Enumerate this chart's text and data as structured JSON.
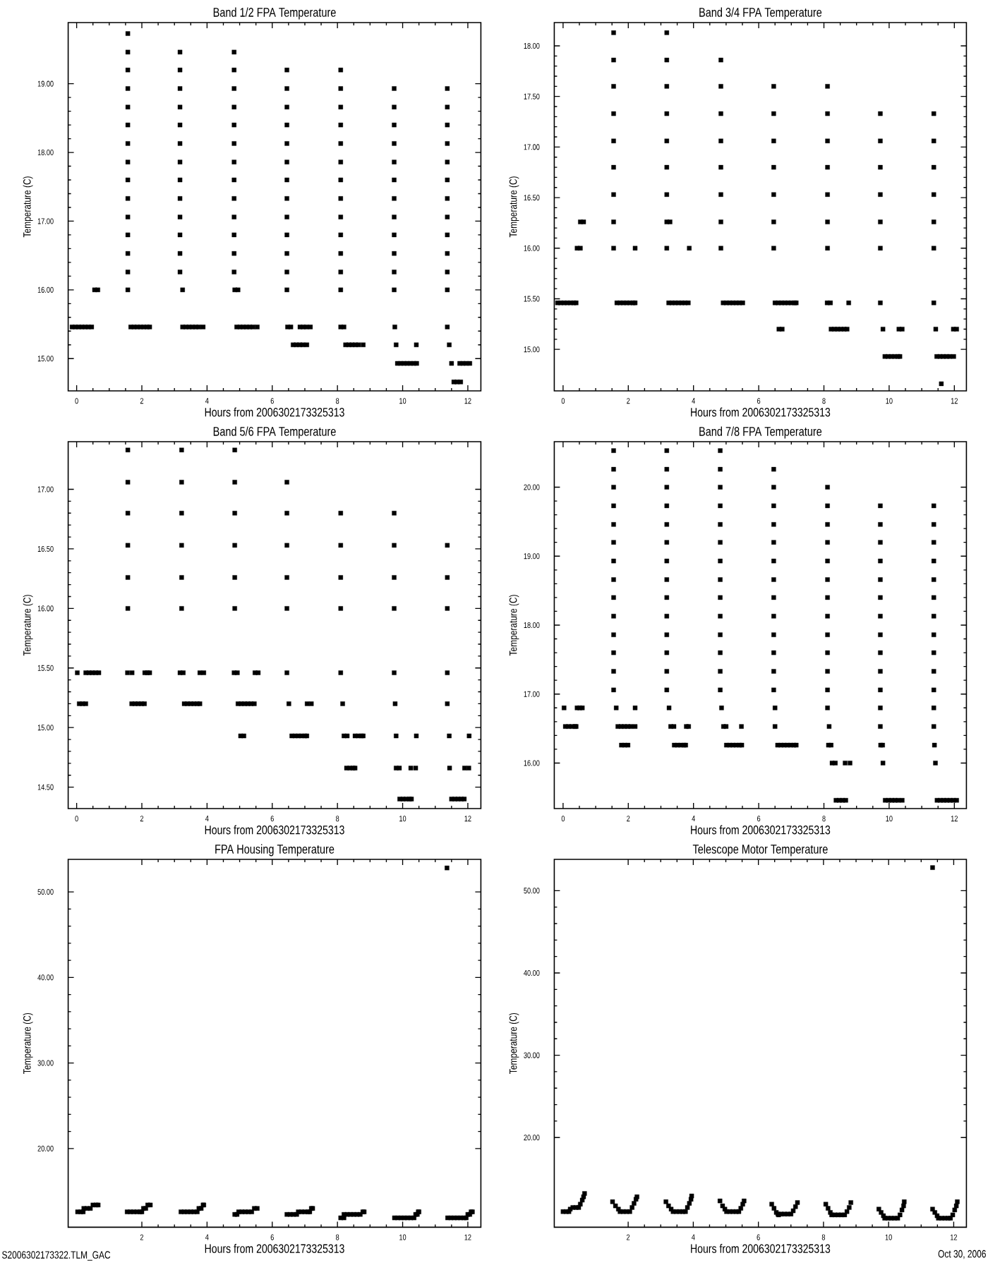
{
  "chart_data": [
    {
      "type": "scatter",
      "title": "Band 1/2 FPA Temperature",
      "xlabel": "Hours from 2006302173325313",
      "ylabel": "Temperature (C)",
      "color": "#000000",
      "marker": "square",
      "xlim": [
        -0.26,
        12.4
      ],
      "ylim": [
        14.53,
        19.89
      ],
      "xticks": [
        0,
        2,
        4,
        6,
        8,
        10,
        12
      ],
      "yticks": [
        {
          "value": 15,
          "label": "15.00"
        },
        {
          "value": 16,
          "label": "16.00"
        },
        {
          "value": 17,
          "label": "17.00"
        },
        {
          "value": 18,
          "label": "18.00"
        },
        {
          "value": 19,
          "label": "19.00"
        }
      ],
      "x": [
        -0.14,
        -0.04,
        0.06,
        0.16,
        0.26,
        0.36,
        0.46,
        0.55,
        0.65,
        1.57,
        1.57,
        1.57,
        1.57,
        1.57,
        1.57,
        1.57,
        1.57,
        1.57,
        1.57,
        1.57,
        1.57,
        1.57,
        1.57,
        1.57,
        1.66,
        1.76,
        1.86,
        1.96,
        2.06,
        2.16,
        2.24,
        3.17,
        3.17,
        3.17,
        3.17,
        3.17,
        3.17,
        3.17,
        3.17,
        3.17,
        3.17,
        3.17,
        3.17,
        3.17,
        3.25,
        3.25,
        3.35,
        3.45,
        3.55,
        3.65,
        3.75,
        3.88,
        4.83,
        4.83,
        4.83,
        4.83,
        4.83,
        4.83,
        4.83,
        4.83,
        4.83,
        4.83,
        4.83,
        4.83,
        4.83,
        4.85,
        4.95,
        4.91,
        5.01,
        5.11,
        5.21,
        5.31,
        5.41,
        5.54,
        6.45,
        6.45,
        6.45,
        6.45,
        6.45,
        6.45,
        6.45,
        6.45,
        6.45,
        6.45,
        6.45,
        6.45,
        6.45,
        6.47,
        6.57,
        6.85,
        6.95,
        7.05,
        7.17,
        6.64,
        6.74,
        6.84,
        6.94,
        7.06,
        8.1,
        8.1,
        8.1,
        8.1,
        8.1,
        8.1,
        8.1,
        8.1,
        8.1,
        8.1,
        8.1,
        8.1,
        8.1,
        8.1,
        8.2,
        8.25,
        8.35,
        8.45,
        8.55,
        8.65,
        8.79,
        9.74,
        9.74,
        9.74,
        9.74,
        9.74,
        9.74,
        9.74,
        9.74,
        9.74,
        9.74,
        9.74,
        9.74,
        9.76,
        9.8,
        10.42,
        9.84,
        9.94,
        10.04,
        10.14,
        10.24,
        10.34,
        10.43,
        11.37,
        11.37,
        11.37,
        11.37,
        11.37,
        11.37,
        11.37,
        11.37,
        11.37,
        11.37,
        11.37,
        11.37,
        11.37,
        11.43,
        11.5,
        11.75,
        11.85,
        11.95,
        12.06,
        11.57,
        11.67,
        11.78
      ],
      "values": [
        15.46,
        15.46,
        15.46,
        15.46,
        15.46,
        15.46,
        15.46,
        16.0,
        16.0,
        16.0,
        16.26,
        16.53,
        16.8,
        17.06,
        17.33,
        17.6,
        17.86,
        18.13,
        18.4,
        18.66,
        18.93,
        19.2,
        19.46,
        19.73,
        15.46,
        15.46,
        15.46,
        15.46,
        15.46,
        15.46,
        15.46,
        16.26,
        16.53,
        16.8,
        17.06,
        17.33,
        17.6,
        17.86,
        18.13,
        18.4,
        18.66,
        18.93,
        19.2,
        19.46,
        16.0,
        15.46,
        15.46,
        15.46,
        15.46,
        15.46,
        15.46,
        15.46,
        16.26,
        16.53,
        16.8,
        17.06,
        17.33,
        17.6,
        17.86,
        18.13,
        18.4,
        18.66,
        18.93,
        19.2,
        19.46,
        16.0,
        16.0,
        15.46,
        15.46,
        15.46,
        15.46,
        15.46,
        15.46,
        15.46,
        16.0,
        16.26,
        16.53,
        16.8,
        17.06,
        17.33,
        17.6,
        17.86,
        18.13,
        18.4,
        18.66,
        18.93,
        19.2,
        15.46,
        15.46,
        15.46,
        15.46,
        15.46,
        15.46,
        15.2,
        15.2,
        15.2,
        15.2,
        15.2,
        16.0,
        16.26,
        16.53,
        16.8,
        17.06,
        17.33,
        17.6,
        17.86,
        18.13,
        18.4,
        18.66,
        18.93,
        19.2,
        15.46,
        15.46,
        15.2,
        15.2,
        15.2,
        15.2,
        15.2,
        15.2,
        16.0,
        16.26,
        16.53,
        16.8,
        17.06,
        17.33,
        17.6,
        17.86,
        18.13,
        18.4,
        18.66,
        18.93,
        15.46,
        15.2,
        15.2,
        14.93,
        14.93,
        14.93,
        14.93,
        14.93,
        14.93,
        14.93,
        16.0,
        16.26,
        16.53,
        16.8,
        17.06,
        17.33,
        17.6,
        17.86,
        18.13,
        18.4,
        18.66,
        18.93,
        15.46,
        15.2,
        14.93,
        14.93,
        14.93,
        14.93,
        14.93,
        14.66,
        14.66,
        14.66
      ]
    },
    {
      "type": "scatter",
      "title": "Band 3/4 FPA Temperature",
      "xlabel": "Hours from 2006302173325313",
      "ylabel": "Temperature (C)",
      "color": "#000000",
      "marker": "square",
      "xlim": [
        -0.27,
        12.37
      ],
      "ylim": [
        14.59,
        18.23
      ],
      "xticks": [
        0,
        2,
        4,
        6,
        8,
        10,
        12
      ],
      "yticks": [
        {
          "value": 15,
          "label": "15.00"
        },
        {
          "value": 15.5,
          "label": "15.50"
        },
        {
          "value": 16,
          "label": "16.00"
        },
        {
          "value": 16.5,
          "label": "16.50"
        },
        {
          "value": 17,
          "label": "17.00"
        },
        {
          "value": 17.5,
          "label": "17.50"
        },
        {
          "value": 18,
          "label": "18.00"
        }
      ],
      "x": [
        -0.17,
        -0.07,
        0.03,
        0.13,
        0.23,
        0.33,
        0.4,
        0.43,
        0.53,
        0.53,
        0.63,
        1.55,
        1.55,
        1.55,
        1.55,
        1.55,
        1.55,
        1.55,
        1.55,
        1.55,
        2.21,
        1.65,
        1.75,
        1.85,
        1.95,
        2.05,
        2.15,
        2.21,
        3.18,
        3.18,
        3.18,
        3.18,
        3.18,
        3.18,
        3.18,
        3.18,
        3.18,
        3.28,
        3.87,
        3.24,
        3.34,
        3.44,
        3.54,
        3.64,
        3.74,
        3.84,
        4.84,
        4.84,
        4.84,
        4.84,
        4.84,
        4.84,
        4.84,
        4.84,
        4.91,
        5.01,
        5.11,
        5.21,
        5.31,
        5.41,
        5.51,
        6.46,
        6.46,
        6.46,
        6.46,
        6.46,
        6.46,
        6.46,
        6.5,
        6.6,
        6.7,
        6.8,
        6.9,
        7.0,
        7.1,
        7.15,
        6.62,
        6.72,
        8.11,
        8.11,
        8.11,
        8.11,
        8.11,
        8.11,
        8.11,
        8.1,
        8.2,
        8.76,
        8.22,
        8.32,
        8.42,
        8.52,
        8.62,
        8.71,
        9.73,
        9.73,
        9.73,
        9.73,
        9.73,
        9.73,
        9.73,
        9.81,
        10.3,
        10.4,
        9.87,
        9.97,
        10.07,
        10.17,
        10.27,
        10.33,
        11.37,
        11.37,
        11.37,
        11.37,
        11.37,
        11.37,
        11.37,
        11.43,
        11.97,
        12.07,
        11.46,
        11.56,
        11.66,
        11.76,
        11.86,
        11.98,
        11.6
      ],
      "values": [
        15.46,
        15.46,
        15.46,
        15.46,
        15.46,
        15.46,
        15.46,
        16.0,
        16.0,
        16.26,
        16.26,
        16.0,
        16.26,
        16.53,
        16.8,
        17.06,
        17.33,
        17.6,
        17.86,
        18.13,
        16.0,
        15.46,
        15.46,
        15.46,
        15.46,
        15.46,
        15.46,
        15.46,
        16.0,
        16.26,
        16.53,
        16.8,
        17.06,
        17.33,
        17.6,
        17.86,
        18.13,
        16.26,
        16.0,
        15.46,
        15.46,
        15.46,
        15.46,
        15.46,
        15.46,
        15.46,
        16.0,
        16.26,
        16.53,
        16.8,
        17.06,
        17.33,
        17.6,
        17.86,
        15.46,
        15.46,
        15.46,
        15.46,
        15.46,
        15.46,
        15.46,
        16.0,
        16.26,
        16.53,
        16.8,
        17.06,
        17.33,
        17.6,
        15.46,
        15.46,
        15.46,
        15.46,
        15.46,
        15.46,
        15.46,
        15.46,
        15.2,
        15.2,
        16.0,
        16.26,
        16.53,
        16.8,
        17.06,
        17.33,
        17.6,
        15.46,
        15.46,
        15.46,
        15.2,
        15.2,
        15.2,
        15.2,
        15.2,
        15.2,
        16.0,
        16.26,
        16.53,
        16.8,
        17.06,
        17.33,
        15.46,
        15.2,
        15.2,
        15.2,
        14.93,
        14.93,
        14.93,
        14.93,
        14.93,
        14.93,
        16.0,
        16.26,
        16.53,
        16.8,
        17.06,
        17.33,
        15.46,
        15.2,
        15.2,
        15.2,
        14.93,
        14.93,
        14.93,
        14.93,
        14.93,
        14.93,
        14.66
      ]
    },
    {
      "type": "scatter",
      "title": "Band 5/6 FPA Temperature",
      "xlabel": "Hours from 2006302173325313",
      "ylabel": "Temperature (C)",
      "color": "#000000",
      "marker": "square",
      "xlim": [
        -0.26,
        12.4
      ],
      "ylim": [
        14.32,
        17.4
      ],
      "xticks": [
        0,
        2,
        4,
        6,
        8,
        10,
        12
      ],
      "yticks": [
        {
          "value": 14.5,
          "label": "14.50"
        },
        {
          "value": 15,
          "label": "15.00"
        },
        {
          "value": 15.5,
          "label": "15.50"
        },
        {
          "value": 16,
          "label": "16.00"
        },
        {
          "value": 16.5,
          "label": "16.50"
        },
        {
          "value": 17,
          "label": "17.00"
        }
      ],
      "x": [
        0.02,
        0.28,
        0.38,
        0.48,
        0.58,
        0.68,
        0.08,
        0.18,
        0.28,
        1.57,
        1.57,
        1.57,
        1.57,
        1.57,
        1.57,
        1.56,
        1.7,
        2.09,
        2.17,
        2.24,
        1.69,
        1.79,
        1.89,
        1.99,
        2.08,
        3.22,
        3.22,
        3.22,
        3.22,
        3.22,
        3.22,
        3.17,
        3.27,
        3.78,
        3.9,
        3.3,
        3.4,
        3.5,
        3.6,
        3.7,
        3.78,
        4.85,
        4.85,
        4.85,
        4.85,
        4.85,
        4.85,
        4.83,
        4.93,
        5.47,
        5.57,
        4.95,
        5.05,
        5.15,
        5.25,
        5.35,
        5.45,
        5.03,
        5.13,
        6.45,
        6.45,
        6.45,
        6.45,
        6.45,
        6.45,
        6.51,
        7.07,
        7.2,
        6.6,
        6.7,
        6.8,
        6.9,
        7.0,
        7.06,
        8.1,
        8.1,
        8.1,
        8.1,
        8.1,
        8.16,
        8.2,
        8.3,
        8.54,
        8.64,
        8.74,
        8.79,
        8.28,
        8.38,
        8.48,
        8.54,
        9.74,
        9.74,
        9.74,
        9.74,
        9.74,
        9.77,
        9.8,
        10.42,
        9.8,
        9.9,
        10.25,
        10.4,
        9.91,
        10.01,
        10.11,
        10.21,
        10.27,
        11.37,
        11.37,
        11.37,
        11.37,
        11.37,
        11.43,
        12.04,
        11.44,
        11.9,
        12.03,
        11.5,
        11.6,
        11.7,
        11.8,
        11.89
      ],
      "values": [
        15.46,
        15.46,
        15.46,
        15.46,
        15.46,
        15.46,
        15.2,
        15.2,
        15.2,
        16.0,
        16.26,
        16.53,
        16.8,
        17.06,
        17.33,
        15.46,
        15.46,
        15.46,
        15.46,
        15.46,
        15.2,
        15.2,
        15.2,
        15.2,
        15.2,
        16.0,
        16.26,
        16.53,
        16.8,
        17.06,
        17.33,
        15.46,
        15.46,
        15.46,
        15.46,
        15.2,
        15.2,
        15.2,
        15.2,
        15.2,
        15.2,
        16.0,
        16.26,
        16.53,
        16.8,
        17.06,
        17.33,
        15.46,
        15.46,
        15.46,
        15.46,
        15.2,
        15.2,
        15.2,
        15.2,
        15.2,
        15.2,
        14.93,
        14.93,
        16.0,
        16.26,
        16.53,
        16.8,
        17.06,
        15.46,
        15.2,
        15.2,
        15.2,
        14.93,
        14.93,
        14.93,
        14.93,
        14.93,
        14.93,
        16.0,
        16.26,
        16.53,
        16.8,
        15.46,
        15.2,
        14.93,
        14.93,
        14.93,
        14.93,
        14.93,
        14.93,
        14.66,
        14.66,
        14.66,
        14.66,
        16.0,
        16.26,
        16.53,
        16.8,
        15.46,
        15.2,
        14.93,
        14.93,
        14.66,
        14.66,
        14.66,
        14.66,
        14.4,
        14.4,
        14.4,
        14.4,
        14.4,
        16.0,
        16.26,
        16.53,
        15.46,
        15.2,
        14.93,
        14.93,
        14.66,
        14.66,
        14.66,
        14.4,
        14.4,
        14.4,
        14.4,
        14.4
      ]
    },
    {
      "type": "scatter",
      "title": "Band 7/8 FPA Temperature",
      "xlabel": "Hours from 2006302173325313",
      "ylabel": "Temperature (C)",
      "color": "#000000",
      "marker": "square",
      "xlim": [
        -0.27,
        12.37
      ],
      "ylim": [
        15.34,
        20.66
      ],
      "xticks": [
        0,
        2,
        4,
        6,
        8,
        10,
        12
      ],
      "yticks": [
        {
          "value": 16,
          "label": "16.00"
        },
        {
          "value": 17,
          "label": "17.00"
        },
        {
          "value": 18,
          "label": "18.00"
        },
        {
          "value": 19,
          "label": "19.00"
        },
        {
          "value": 20,
          "label": "20.00"
        }
      ],
      "x": [
        0.03,
        0.43,
        0.51,
        0.59,
        0.07,
        0.17,
        0.27,
        0.37,
        0.4,
        1.55,
        1.55,
        1.55,
        1.55,
        1.55,
        1.55,
        1.55,
        1.55,
        1.55,
        1.55,
        1.55,
        1.55,
        1.55,
        1.55,
        1.63,
        2.21,
        1.68,
        1.78,
        1.88,
        1.98,
        2.08,
        2.21,
        1.79,
        1.89,
        1.99,
        3.18,
        3.18,
        3.18,
        3.18,
        3.18,
        3.18,
        3.18,
        3.18,
        3.18,
        3.18,
        3.18,
        3.18,
        3.18,
        3.18,
        3.25,
        3.3,
        3.4,
        3.78,
        3.85,
        3.41,
        3.51,
        3.61,
        3.71,
        3.76,
        4.82,
        4.82,
        4.82,
        4.82,
        4.82,
        4.82,
        4.82,
        4.82,
        4.82,
        4.82,
        4.82,
        4.82,
        4.82,
        4.82,
        4.86,
        4.92,
        5.0,
        5.47,
        5.01,
        5.11,
        5.21,
        5.31,
        5.41,
        5.48,
        6.46,
        6.46,
        6.46,
        6.46,
        6.46,
        6.46,
        6.46,
        6.46,
        6.46,
        6.46,
        6.46,
        6.46,
        6.46,
        6.5,
        6.5,
        6.58,
        6.68,
        6.78,
        6.88,
        6.98,
        7.08,
        7.15,
        8.11,
        8.11,
        8.11,
        8.11,
        8.11,
        8.11,
        8.11,
        8.11,
        8.11,
        8.11,
        8.11,
        8.11,
        8.11,
        8.16,
        8.14,
        8.22,
        8.25,
        8.35,
        8.65,
        8.8,
        8.37,
        8.47,
        8.57,
        8.67,
        9.73,
        9.73,
        9.73,
        9.73,
        9.73,
        9.73,
        9.73,
        9.73,
        9.73,
        9.73,
        9.73,
        9.73,
        9.73,
        9.74,
        9.8,
        9.81,
        9.88,
        9.98,
        10.08,
        10.18,
        10.28,
        10.4,
        11.37,
        11.37,
        11.37,
        11.37,
        11.37,
        11.37,
        11.37,
        11.37,
        11.37,
        11.37,
        11.37,
        11.37,
        11.37,
        11.39,
        11.42,
        11.47,
        11.57,
        11.67,
        11.77,
        11.87,
        11.97,
        12.07
      ],
      "values": [
        16.8,
        16.8,
        16.8,
        16.8,
        16.53,
        16.53,
        16.53,
        16.53,
        16.53,
        17.06,
        17.33,
        17.6,
        17.86,
        18.13,
        18.4,
        18.66,
        18.93,
        19.2,
        19.46,
        19.73,
        20.0,
        20.26,
        20.53,
        16.8,
        16.8,
        16.53,
        16.53,
        16.53,
        16.53,
        16.53,
        16.53,
        16.26,
        16.26,
        16.26,
        17.06,
        17.33,
        17.6,
        17.86,
        18.13,
        18.4,
        18.66,
        18.93,
        19.2,
        19.46,
        19.73,
        20.0,
        20.26,
        20.53,
        16.8,
        16.53,
        16.53,
        16.53,
        16.53,
        16.26,
        16.26,
        16.26,
        16.26,
        16.26,
        17.06,
        17.33,
        17.6,
        17.86,
        18.13,
        18.4,
        18.66,
        18.93,
        19.2,
        19.46,
        19.73,
        20.0,
        20.26,
        20.53,
        16.8,
        16.53,
        16.53,
        16.53,
        16.26,
        16.26,
        16.26,
        16.26,
        16.26,
        16.26,
        17.06,
        17.33,
        17.6,
        17.86,
        18.13,
        18.4,
        18.66,
        18.93,
        19.2,
        19.46,
        19.73,
        20.0,
        20.26,
        16.8,
        16.53,
        16.26,
        16.26,
        16.26,
        16.26,
        16.26,
        16.26,
        16.26,
        16.8,
        17.06,
        17.33,
        17.6,
        17.86,
        18.13,
        18.4,
        18.66,
        18.93,
        19.2,
        19.46,
        19.73,
        20.0,
        16.53,
        16.26,
        16.26,
        16.0,
        16.0,
        16.0,
        16.0,
        15.46,
        15.46,
        15.46,
        15.46,
        16.53,
        16.8,
        17.06,
        17.33,
        17.6,
        17.86,
        18.13,
        18.4,
        18.66,
        18.93,
        19.2,
        19.46,
        19.73,
        16.26,
        16.26,
        16.0,
        15.46,
        15.46,
        15.46,
        15.46,
        15.46,
        15.46,
        16.53,
        16.8,
        17.06,
        17.33,
        17.6,
        17.86,
        18.13,
        18.4,
        18.66,
        18.93,
        19.2,
        19.46,
        19.73,
        16.26,
        16.0,
        15.46,
        15.46,
        15.46,
        15.46,
        15.46,
        15.46,
        15.46
      ]
    },
    {
      "type": "scatter",
      "title": "FPA Housing Temperature",
      "xlabel": "Hours from 2006302173325313",
      "ylabel": "Temperature (C)",
      "color": "#000000",
      "marker": "square",
      "xlim": [
        -0.26,
        12.4
      ],
      "ylim": [
        10.8,
        53.8
      ],
      "xticks": [
        2,
        4,
        6,
        8,
        10,
        12
      ],
      "yticks": [
        {
          "value": 20,
          "label": "20.00"
        },
        {
          "value": 30,
          "label": "30.00"
        },
        {
          "value": 40,
          "label": "40.00"
        },
        {
          "value": 50,
          "label": "50.00"
        }
      ],
      "annotations": [
        "S2006302173322.TLM_GAC"
      ],
      "x": [
        0.03,
        0.13,
        0.2,
        0.22,
        0.32,
        0.42,
        0.5,
        0.6,
        0.66,
        1.55,
        1.65,
        1.75,
        1.85,
        1.95,
        2.0,
        2.05,
        2.12,
        2.18,
        2.26,
        3.2,
        3.3,
        3.4,
        3.5,
        3.6,
        3.7,
        3.75,
        3.82,
        3.88,
        3.9,
        4.85,
        4.92,
        4.97,
        5.07,
        5.17,
        5.27,
        5.37,
        5.45,
        5.54,
        6.45,
        6.55,
        6.65,
        6.75,
        6.8,
        6.9,
        7.0,
        7.1,
        7.15,
        7.2,
        7.24,
        8.1,
        8.2,
        8.2,
        8.3,
        8.4,
        8.5,
        8.6,
        8.7,
        8.78,
        8.82,
        9.75,
        9.85,
        9.95,
        10.05,
        10.15,
        10.25,
        10.35,
        10.4,
        10.45,
        10.48,
        10.5,
        11.38,
        11.48,
        11.58,
        11.68,
        11.78,
        11.88,
        11.95,
        12.0,
        12.06,
        12.1,
        12.14,
        11.36
      ],
      "values": [
        12.6,
        12.6,
        12.6,
        13.0,
        13.0,
        13.0,
        13.4,
        13.4,
        13.4,
        12.6,
        12.6,
        12.6,
        12.6,
        12.6,
        12.6,
        13.0,
        13.0,
        13.4,
        13.4,
        12.6,
        12.6,
        12.6,
        12.6,
        12.6,
        12.6,
        13.0,
        13.0,
        13.4,
        13.4,
        12.3,
        12.3,
        12.6,
        12.6,
        12.6,
        12.6,
        12.6,
        13.0,
        13.0,
        12.3,
        12.3,
        12.3,
        12.3,
        12.6,
        12.6,
        12.6,
        12.6,
        12.6,
        13.0,
        13.0,
        11.9,
        11.9,
        12.3,
        12.3,
        12.3,
        12.3,
        12.3,
        12.3,
        12.6,
        12.6,
        11.9,
        11.9,
        11.9,
        11.9,
        11.9,
        11.9,
        11.9,
        12.3,
        12.3,
        12.6,
        12.6,
        11.9,
        11.9,
        11.9,
        11.9,
        11.9,
        11.9,
        11.9,
        12.3,
        12.3,
        12.6,
        12.6,
        52.8
      ]
    },
    {
      "type": "scatter",
      "title": "Telescope Motor Temperature",
      "xlabel": "Hours from 2006302173325313",
      "ylabel": "Temperature (C)",
      "color": "#000000",
      "marker": "square",
      "xlim": [
        -0.27,
        12.39
      ],
      "ylim": [
        9.1,
        53.8
      ],
      "xticks": [
        2,
        4,
        6,
        8,
        10,
        12
      ],
      "yticks": [
        {
          "value": 20,
          "label": "20.00"
        },
        {
          "value": 30,
          "label": "30.00"
        },
        {
          "value": 40,
          "label": "40.00"
        },
        {
          "value": 50,
          "label": "50.00"
        }
      ],
      "annotations": [
        "Oct 30, 2006"
      ],
      "x": [
        0.0,
        0.1,
        0.18,
        0.22,
        0.3,
        0.4,
        0.48,
        0.53,
        0.59,
        0.63,
        0.66,
        1.52,
        1.61,
        1.7,
        1.75,
        1.85,
        1.95,
        2.05,
        2.12,
        2.18,
        2.24,
        2.27,
        3.16,
        3.24,
        3.32,
        3.38,
        3.48,
        3.58,
        3.68,
        3.76,
        3.82,
        3.88,
        3.93,
        3.95,
        4.82,
        4.9,
        4.97,
        5.02,
        5.12,
        5.22,
        5.32,
        5.4,
        5.46,
        5.52,
        5.56,
        6.41,
        6.48,
        6.55,
        6.6,
        6.7,
        6.8,
        6.9,
        7.0,
        6.62,
        7.07,
        7.14,
        7.2,
        8.07,
        8.14,
        8.21,
        8.25,
        8.35,
        8.45,
        8.55,
        8.65,
        8.72,
        8.79,
        8.84,
        9.7,
        9.77,
        9.84,
        9.88,
        9.98,
        10.08,
        10.18,
        10.28,
        10.35,
        10.41,
        10.46,
        10.48,
        11.35,
        11.42,
        11.49,
        11.53,
        11.63,
        11.73,
        11.83,
        11.9,
        11.97,
        12.03,
        12.08,
        12.11,
        11.35
      ],
      "values": [
        11.0,
        11.0,
        11.0,
        11.3,
        11.5,
        11.5,
        11.5,
        11.9,
        12.4,
        12.8,
        13.2,
        12.2,
        11.7,
        11.3,
        11.0,
        11.0,
        11.0,
        11.0,
        11.5,
        12.0,
        12.5,
        12.8,
        12.2,
        11.7,
        11.3,
        11.0,
        11.0,
        11.0,
        11.0,
        11.0,
        11.5,
        12.0,
        12.5,
        12.9,
        12.3,
        11.7,
        11.3,
        11.0,
        11.0,
        11.0,
        11.0,
        11.0,
        11.4,
        11.9,
        12.3,
        11.9,
        11.4,
        10.9,
        10.7,
        10.7,
        10.7,
        10.7,
        10.7,
        10.6,
        11.1,
        11.6,
        12.1,
        11.9,
        11.4,
        10.9,
        10.6,
        10.6,
        10.6,
        10.6,
        10.6,
        11.0,
        11.5,
        12.1,
        11.3,
        10.9,
        10.5,
        10.2,
        10.2,
        10.2,
        10.2,
        10.2,
        10.6,
        11.2,
        11.7,
        12.2,
        11.3,
        10.9,
        10.5,
        10.2,
        10.2,
        10.2,
        10.2,
        10.2,
        10.6,
        11.2,
        11.7,
        12.2,
        52.8
      ]
    }
  ]
}
